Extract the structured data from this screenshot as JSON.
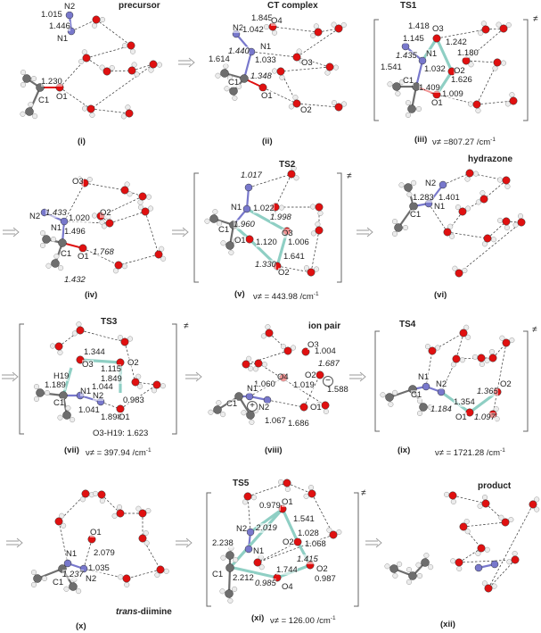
{
  "colors": {
    "oxygen": "#e01010",
    "hydrogen": "#ececec",
    "nitrogen": "#7878cc",
    "carbon": "#6e6e6e",
    "ts_bond": "#8fcfc4",
    "hbond": "#333333"
  },
  "ts_mark": "≠",
  "panels": [
    {
      "title": "precursor",
      "caption": "(i)",
      "labels": [
        "N2",
        "1.015",
        "1.446",
        "N1",
        "1.230",
        "C1",
        "O1"
      ]
    },
    {
      "title": "CT complex",
      "caption": "(ii)",
      "labels": [
        "1.845",
        "O4",
        "N2",
        "1.042",
        "N1",
        "1.440",
        "1.614",
        "1.033",
        "O3",
        "1.348",
        "C1",
        "O1",
        "O2"
      ]
    },
    {
      "title": "TS1",
      "caption": "(iii)",
      "freq": "ν≠ =807.27 /cm",
      "freq_exp": "-1",
      "labels": [
        "1.418",
        "O3",
        "1.145",
        "1.242",
        "1.435",
        "N1",
        "1.180",
        "1.541",
        "1.032",
        "O2",
        "1.626",
        "C1",
        "1.409",
        "1.009",
        "O1"
      ]
    },
    {
      "caption": "(iv)",
      "labels": [
        "O3",
        "N2",
        "1.433",
        "1.020",
        "O2",
        "N1",
        "1.496",
        "C1",
        "O1",
        "1.768",
        "1.432"
      ]
    },
    {
      "title": "TS2",
      "caption": "(v)",
      "freq": "ν≠ = 443.98 /cm",
      "freq_exp": "-1",
      "labels": [
        "1.017",
        "N1",
        "1.022",
        "1.998",
        "C1",
        "1.960",
        "O3",
        "O1",
        "1.120",
        "1.006",
        "1.641",
        "1.330",
        "O2"
      ]
    },
    {
      "title": "hydrazone",
      "caption": "(vi)",
      "labels": [
        "N2",
        "1.283",
        "1.401",
        "N1",
        "C1"
      ]
    },
    {
      "title": "TS3",
      "caption": "(vii)",
      "freq": "ν≠ = 397.94 /cm",
      "freq_exp": "-1",
      "note": "O3-H19: 1.623",
      "labels": [
        "1.344",
        "O3",
        "1.115",
        "O2",
        "H19",
        "1.849",
        "1.189",
        "1.044",
        "N1",
        "N2",
        "0.983",
        "C1",
        "1.041",
        "1.898",
        "O1"
      ]
    },
    {
      "title": "ion pair",
      "caption": "(viii)",
      "charges": [
        "+",
        "−"
      ],
      "labels": [
        "O3",
        "1.004",
        "1.687",
        "O2",
        "O4",
        "1.060",
        "1.019",
        "1.588",
        "N1",
        "C1",
        "N2",
        "O1",
        "1.067",
        "1.686"
      ]
    },
    {
      "title": "TS4",
      "caption": "(ix)",
      "freq": "ν≠ = 1721.28 /cm",
      "freq_exp": "-1",
      "labels": [
        "N1",
        "N2",
        "O2",
        "1.365",
        "C1",
        "1.354",
        "1.184",
        "1.097",
        "O1"
      ]
    },
    {
      "title_italic": "trans",
      "title_rest": "-diimine",
      "caption": "(x)",
      "labels": [
        "O1",
        "2.079",
        "N1",
        "1.035",
        "C1",
        "1.237",
        "N2"
      ]
    },
    {
      "title": "TS5",
      "caption": "(xi)",
      "freq": "ν≠ = 126.00 /cm",
      "freq_exp": "-1",
      "labels": [
        "0.979",
        "O1",
        "1.541",
        "N2",
        "2.019",
        "1.028",
        "2.238",
        "O2",
        "1.068",
        "N1",
        "1.415",
        "1.744",
        "O2",
        "C1",
        "2.212",
        "0.987",
        "0.985",
        "O4"
      ]
    },
    {
      "title": "product",
      "caption": "(xii)"
    }
  ]
}
